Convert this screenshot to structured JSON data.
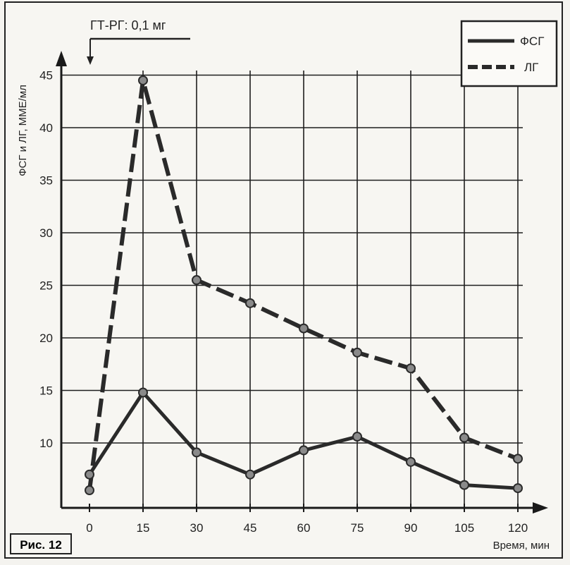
{
  "chart_data": {
    "type": "line",
    "annotation": "ГТ-РГ: 0,1 мг",
    "ylabel": "ФСГ и ЛГ, ММЕ/мл",
    "xlabel": "Время, мин",
    "x": [
      0,
      15,
      30,
      45,
      60,
      75,
      90,
      105,
      120
    ],
    "x_ticks": [
      "0",
      "15",
      "30",
      "45",
      "60",
      "75",
      "90",
      "105",
      "120"
    ],
    "y_ticks": [
      "10",
      "15",
      "20",
      "25",
      "30",
      "35",
      "40",
      "45"
    ],
    "ylim": [
      0,
      48
    ],
    "xlim": [
      -7,
      123
    ],
    "grid": true,
    "legend_position": "top-right",
    "series": [
      {
        "name": "ФСГ",
        "style": "solid",
        "values": [
          7.0,
          14.8,
          9.1,
          7.0,
          9.3,
          10.6,
          8.2,
          6.0,
          5.7
        ]
      },
      {
        "name": "ЛГ",
        "style": "dashed",
        "values": [
          5.5,
          44.5,
          25.5,
          23.3,
          20.9,
          18.6,
          17.1,
          10.5,
          8.5
        ]
      }
    ]
  },
  "figure_label": "Рис. 12",
  "colors": {
    "line": "#2a2a2a",
    "marker_fill": "#8a8a8a",
    "grid": "#1e1e1e",
    "background": "#f7f6f2"
  }
}
